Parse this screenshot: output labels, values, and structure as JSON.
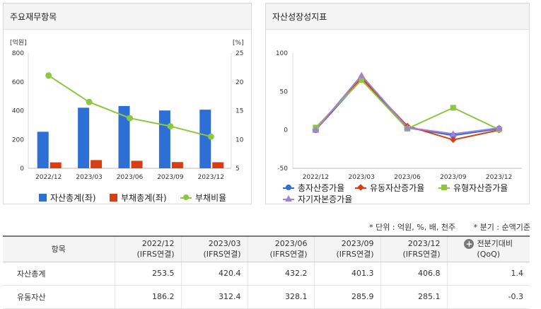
{
  "left_panel": {
    "title": "주요재무항목"
  },
  "right_panel": {
    "title": "자산성장성지표"
  },
  "chart_data": [
    {
      "type": "bar",
      "title": "주요재무항목",
      "categories": [
        "2022/12",
        "2023/03",
        "2023/06",
        "2023/09",
        "2023/12"
      ],
      "left_axis_unit": "[억원]",
      "right_axis_unit": "[%]",
      "ylim_left": [
        0,
        800
      ],
      "yticks_left": [
        "0",
        "200",
        "400",
        "600",
        "800"
      ],
      "ylim_right": [
        5,
        25
      ],
      "yticks_right": [
        "5",
        "10",
        "15",
        "20",
        "25"
      ],
      "grid": false,
      "legend_position": "bottom",
      "series": [
        {
          "name": "자산총계(좌)",
          "type": "bar",
          "axis": "left",
          "color": "#2e6fd6",
          "values": [
            253.5,
            420.4,
            432.2,
            401.3,
            406.8
          ]
        },
        {
          "name": "부채총계(좌)",
          "type": "bar",
          "axis": "left",
          "color": "#d93d12",
          "values": [
            41,
            57,
            52,
            43,
            42
          ]
        },
        {
          "name": "부채비율",
          "type": "line",
          "axis": "right",
          "color": "#8dc63f",
          "marker": "circle",
          "values": [
            21.1,
            16.5,
            13.7,
            12.3,
            10.5
          ]
        }
      ]
    },
    {
      "type": "line",
      "title": "자산성장성지표",
      "categories": [
        "2022/12",
        "2023/03",
        "2023/06",
        "2023/09",
        "2023/12"
      ],
      "ylim": [
        -50,
        100
      ],
      "yticks": [
        "-50",
        "0",
        "50",
        "100"
      ],
      "grid": false,
      "legend_position": "bottom",
      "series": [
        {
          "name": "총자산증가율",
          "color": "#2e6fd6",
          "marker": "circle",
          "values": [
            0,
            65.8,
            2.8,
            -7.2,
            1.4
          ]
        },
        {
          "name": "유동자산증가율",
          "color": "#d93d12",
          "marker": "diamond",
          "values": [
            0,
            67.8,
            5.1,
            -12.9,
            -0.3
          ]
        },
        {
          "name": "유형자산증가율",
          "color": "#8dc63f",
          "marker": "square",
          "values": [
            3,
            65,
            1.5,
            28.8,
            0.5
          ]
        },
        {
          "name": "자기자본증가율",
          "color": "#a47fd6",
          "marker": "triangle",
          "values": [
            0,
            71,
            3,
            -5.2,
            2.5
          ]
        }
      ]
    }
  ],
  "notes": {
    "unit": "* 단위 : 억원, %, 배, 천주",
    "period": "* 분기 : 순액기준"
  },
  "table": {
    "header_item": "항목",
    "columns": [
      {
        "period": "2022/12",
        "basis": "(IFRS연결)"
      },
      {
        "period": "2023/03",
        "basis": "(IFRS연결)"
      },
      {
        "period": "2023/06",
        "basis": "(IFRS연결)"
      },
      {
        "period": "2023/09",
        "basis": "(IFRS연결)"
      },
      {
        "period": "2023/12",
        "basis": "(IFRS연결)"
      }
    ],
    "compare": {
      "label": "전분기대비",
      "sub": "(QoQ)"
    },
    "rows": [
      {
        "label": "자산총계",
        "values": [
          "253.5",
          "420.4",
          "432.2",
          "401.3",
          "406.8"
        ],
        "qoq": "1.4"
      },
      {
        "label": "유동자산",
        "values": [
          "186.2",
          "312.4",
          "328.1",
          "285.9",
          "285.1"
        ],
        "qoq": "-0.3"
      }
    ]
  }
}
